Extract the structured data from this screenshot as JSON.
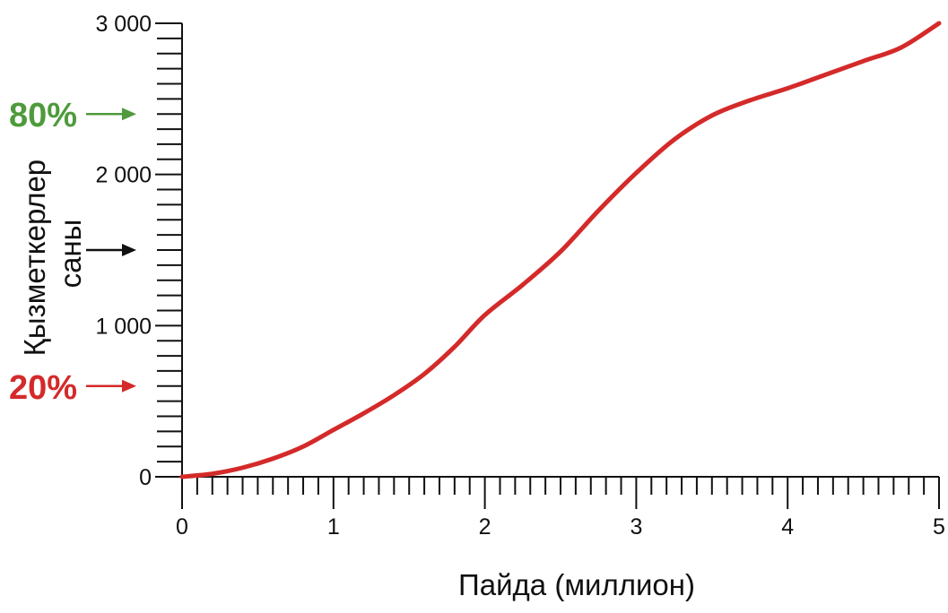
{
  "chart_data": {
    "type": "line",
    "title": "",
    "xlabel": "Пайда (миллион)",
    "ylabel_lines": [
      "Қызметкерлер",
      "саны"
    ],
    "xlim": [
      0,
      5
    ],
    "ylim": [
      0,
      3000
    ],
    "x_ticks": [
      {
        "value": 0,
        "label": "0"
      },
      {
        "value": 1,
        "label": "1"
      },
      {
        "value": 2,
        "label": "2"
      },
      {
        "value": 3,
        "label": "3"
      },
      {
        "value": 4,
        "label": "4"
      },
      {
        "value": 5,
        "label": "5"
      }
    ],
    "x_minor_step": 0.1,
    "y_ticks": [
      {
        "value": 0,
        "label": "0"
      },
      {
        "value": 1000,
        "label": "1 000"
      },
      {
        "value": 2000,
        "label": "2 000"
      },
      {
        "value": 3000,
        "label": "3 000"
      }
    ],
    "y_minor_step": 100,
    "grid": false,
    "legend": "none",
    "series": [
      {
        "color": "#d42a2a",
        "points": [
          {
            "x": 0,
            "y": 0
          },
          {
            "x": 0.2,
            "y": 20
          },
          {
            "x": 0.4,
            "y": 60
          },
          {
            "x": 0.6,
            "y": 120
          },
          {
            "x": 0.8,
            "y": 200
          },
          {
            "x": 1.0,
            "y": 310
          },
          {
            "x": 1.2,
            "y": 420
          },
          {
            "x": 1.4,
            "y": 540
          },
          {
            "x": 1.6,
            "y": 680
          },
          {
            "x": 1.8,
            "y": 860
          },
          {
            "x": 2.0,
            "y": 1070
          },
          {
            "x": 2.25,
            "y": 1270
          },
          {
            "x": 2.5,
            "y": 1490
          },
          {
            "x": 2.75,
            "y": 1760
          },
          {
            "x": 3.0,
            "y": 2010
          },
          {
            "x": 3.25,
            "y": 2230
          },
          {
            "x": 3.5,
            "y": 2390
          },
          {
            "x": 3.75,
            "y": 2490
          },
          {
            "x": 4.0,
            "y": 2570
          },
          {
            "x": 4.25,
            "y": 2660
          },
          {
            "x": 4.5,
            "y": 2750
          },
          {
            "x": 4.75,
            "y": 2840
          },
          {
            "x": 5.0,
            "y": 3000
          }
        ]
      }
    ],
    "annotations": [
      {
        "text": "80%",
        "y": 2400,
        "color": "#4f9a3c",
        "arrow_color": "#4f9a3c"
      },
      {
        "text": "",
        "y": 1500,
        "color": "#111111",
        "arrow_color": "#111111"
      },
      {
        "text": "20%",
        "y": 600,
        "color": "#d42a2a",
        "arrow_color": "#d42a2a"
      }
    ]
  }
}
